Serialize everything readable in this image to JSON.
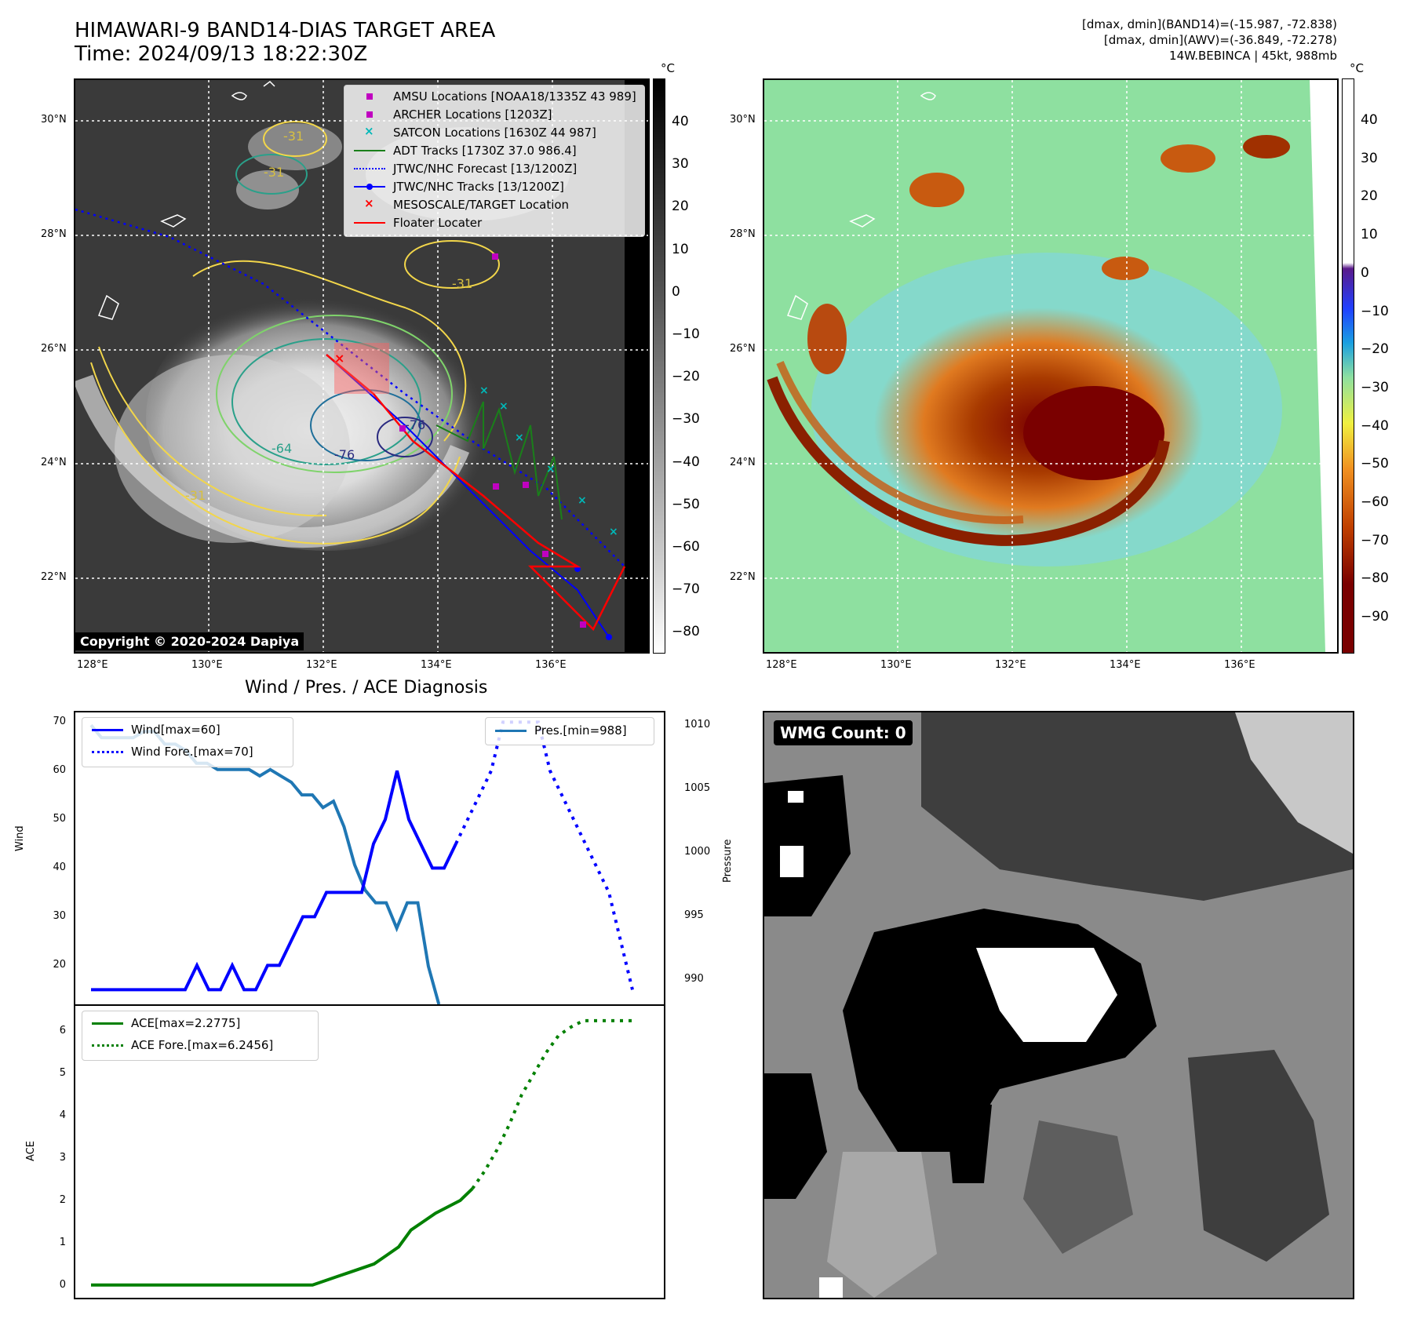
{
  "header": {
    "title_line1": "HIMAWARI-9 BAND14-DIAS TARGET AREA",
    "title_line2": "Time: 2024/09/13 18:22:30Z",
    "info_line1": "[dmax, dmin](BAND14)=(-15.987, -72.838)",
    "info_line2": "[dmax, dmin](AWV)=(-36.849, -72.278)",
    "info_line3": "14W.BEBINCA | 45kt, 988mb"
  },
  "colorbar": {
    "unit": "°C",
    "left_ticks": [
      "40",
      "30",
      "20",
      "10",
      "0",
      "−10",
      "−20",
      "−30",
      "−40",
      "−50",
      "−60",
      "−70",
      "−80"
    ],
    "right_ticks": [
      "40",
      "30",
      "20",
      "10",
      "0",
      "−10",
      "−20",
      "−30",
      "−40",
      "−50",
      "−60",
      "−70",
      "−80",
      "−90"
    ]
  },
  "map": {
    "lon_labels": [
      "128°E",
      "130°E",
      "132°E",
      "134°E",
      "136°E"
    ],
    "lat_labels": [
      "30°N",
      "28°N",
      "26°N",
      "24°N",
      "22°N"
    ],
    "copyright": "Copyright © 2020-2024 Dapiya",
    "contour_labels": [
      "-31",
      "-31",
      "-31",
      "-64",
      "-76",
      "-76",
      "-31"
    ],
    "legend": [
      {
        "label": "AMSU Locations [NOAA18/1335Z 43 989]",
        "marker": "square",
        "color": "#c000c0"
      },
      {
        "label": "ARCHER Locations [1203Z]",
        "marker": "square",
        "color": "#c000c0"
      },
      {
        "label": "SATCON Locations [1630Z 44 987]",
        "marker": "x",
        "color": "#00b8b8"
      },
      {
        "label": "ADT Tracks [1730Z 37.0 986.4]",
        "marker": "line",
        "color": "#1a7f1a"
      },
      {
        "label": "JTWC/NHC Forecast [13/1200Z]",
        "marker": "dotted",
        "color": "#0000ff"
      },
      {
        "label": "JTWC/NHC Tracks [13/1200Z]",
        "marker": "line-dot",
        "color": "#0000ff"
      },
      {
        "label": "MESOSCALE/TARGET Location",
        "marker": "x",
        "color": "#ff0000"
      },
      {
        "label": "Floater Locater",
        "marker": "line",
        "color": "#ff0000"
      }
    ]
  },
  "wind_panel": {
    "title": "Wind / Pres. / ACE Diagnosis",
    "ylabel_left": "Wind",
    "ylabel_right": "Pressure",
    "wind_ticks": [
      "70",
      "60",
      "50",
      "40",
      "30",
      "20"
    ],
    "pres_ticks": [
      "1010",
      "1005",
      "1000",
      "995",
      "990"
    ],
    "legend_wind": "Wind[max=60]",
    "legend_wind_fore": "Wind Fore.[max=70]",
    "legend_pres": "Pres.[min=988]"
  },
  "ace_panel": {
    "ylabel": "ACE",
    "ticks": [
      "6",
      "5",
      "4",
      "3",
      "2",
      "1",
      "0"
    ],
    "legend_ace": "ACE[max=2.2775]",
    "legend_ace_fore": "ACE Fore.[max=6.2456]"
  },
  "wmg_panel": {
    "label": "WMG Count: 0"
  },
  "chart_data": [
    {
      "type": "line",
      "title": "Wind / Pres. / ACE Diagnosis",
      "ylabel": "Wind",
      "ylim": [
        12,
        72
      ],
      "series": [
        {
          "name": "Wind[max=60]",
          "values": [
            15,
            15,
            15,
            15,
            15,
            15,
            15,
            15,
            15,
            20,
            15,
            15,
            20,
            15,
            15,
            20,
            20,
            25,
            30,
            30,
            35,
            35,
            35,
            35,
            45,
            50,
            60,
            50,
            45,
            40,
            40,
            45
          ]
        },
        {
          "name": "Wind Fore.[max=70]",
          "values": [
            45,
            50,
            55,
            60,
            70,
            70,
            70,
            70,
            60,
            55,
            50,
            45,
            40,
            35,
            25,
            15
          ]
        }
      ]
    },
    {
      "type": "line",
      "ylabel": "Pressure",
      "ylim": [
        988,
        1011
      ],
      "series": [
        {
          "name": "Pres.[min=988]",
          "values": [
            1010,
            1009,
            1009,
            1009,
            1009,
            1009.5,
            1009.5,
            1008.5,
            1008.5,
            1008,
            1007,
            1007,
            1006.5,
            1006.5,
            1006.5,
            1006.5,
            1006,
            1006.5,
            1006,
            1005.5,
            1004.5,
            1004.5,
            1003.5,
            1004,
            1002,
            999,
            997,
            996,
            996,
            994,
            996,
            996,
            991,
            988
          ]
        }
      ]
    },
    {
      "type": "line",
      "ylabel": "ACE",
      "ylim": [
        -0.3,
        6.6
      ],
      "series": [
        {
          "name": "ACE[max=2.2775]",
          "values": [
            0,
            0,
            0,
            0,
            0,
            0,
            0,
            0,
            0,
            0,
            0,
            0,
            0,
            0,
            0,
            0,
            0,
            0,
            0,
            0.1,
            0.2,
            0.3,
            0.4,
            0.5,
            0.7,
            0.9,
            1.3,
            1.5,
            1.7,
            1.85,
            2.0,
            2.28
          ]
        },
        {
          "name": "ACE Fore.[max=6.2456]",
          "values": [
            2.28,
            2.7,
            3.2,
            3.8,
            4.5,
            5.0,
            5.5,
            5.9,
            6.1,
            6.25,
            6.25,
            6.25,
            6.25,
            6.25
          ]
        }
      ]
    }
  ]
}
